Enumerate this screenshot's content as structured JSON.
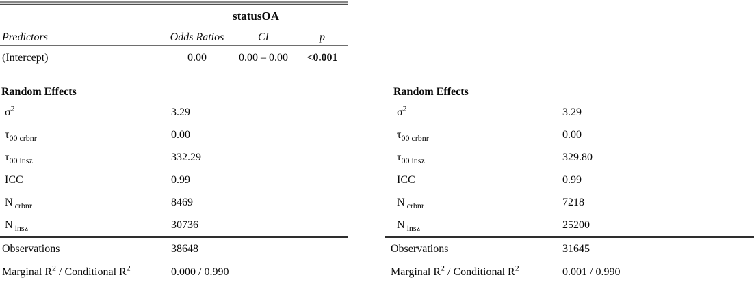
{
  "left_table": {
    "model_header": "statusOA",
    "columns": {
      "predictors": "Predictors",
      "odds_ratios": "Odds Ratios",
      "ci": "CI",
      "p": "p"
    },
    "intercept_row": {
      "label": "(Intercept)",
      "odds_ratio": "0.00",
      "ci": "0.00 – 0.00",
      "p": "<0.001"
    },
    "random_effects": {
      "title": "Random Effects",
      "rows": [
        {
          "sym": "σ",
          "sup": "2",
          "sub": "",
          "value": "3.29"
        },
        {
          "sym": "τ",
          "sup": "",
          "sub": "00 crbnr",
          "value": "0.00"
        },
        {
          "sym": "τ",
          "sup": "",
          "sub": "00 insz",
          "value": "332.29"
        },
        {
          "sym": "ICC",
          "sup": "",
          "sub": "",
          "value": "0.99"
        },
        {
          "sym": "N",
          "sup": "",
          "sub": " crbnr",
          "value": "8469"
        },
        {
          "sym": "N",
          "sup": "",
          "sub": " insz",
          "value": "30736"
        }
      ]
    },
    "observations": {
      "label": "Observations",
      "value": "38648"
    },
    "r2": {
      "part1": "Marginal R",
      "sup1": "2",
      "part2": " / Conditional R",
      "sup2": "2",
      "value": "0.000 / 0.990"
    }
  },
  "right_table": {
    "random_effects": {
      "title": "Random Effects",
      "rows": [
        {
          "sym": "σ",
          "sup": "2",
          "sub": "",
          "value": "3.29"
        },
        {
          "sym": "τ",
          "sup": "",
          "sub": "00 crbnr",
          "value": "0.00"
        },
        {
          "sym": "τ",
          "sup": "",
          "sub": "00 insz",
          "value": "329.80"
        },
        {
          "sym": "ICC",
          "sup": "",
          "sub": "",
          "value": "0.99"
        },
        {
          "sym": "N",
          "sup": "",
          "sub": " crbnr",
          "value": "7218"
        },
        {
          "sym": "N",
          "sup": "",
          "sub": " insz",
          "value": "25200"
        }
      ]
    },
    "observations": {
      "label": "Observations",
      "value": "31645"
    },
    "r2": {
      "part1": "Marginal R",
      "sup1": "2",
      "part2": " / Conditional R",
      "sup2": "2",
      "value": "0.001 / 0.990"
    }
  }
}
